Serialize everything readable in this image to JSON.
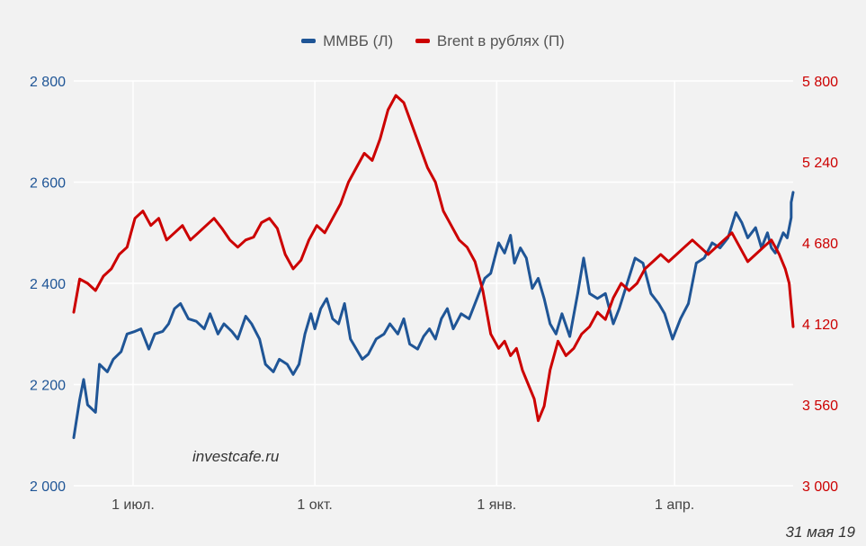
{
  "legend": {
    "left_series_label": "ММВБ (Л)",
    "right_series_label": "Brent в рублях (П)"
  },
  "watermark": "investcafe.ru",
  "date_stamp": "31 мая 19",
  "colors": {
    "background": "#f2f2f2",
    "grid": "#ffffff",
    "left_series": "#1f5596",
    "right_series": "#cc0000",
    "x_tick_text": "#444444"
  },
  "chart_data": {
    "type": "line",
    "x_ticks": [
      "1 июл.",
      "1 окт.",
      "1 янв.",
      "1 апр."
    ],
    "x_range": [
      "2018-06-01",
      "2019-05-31"
    ],
    "y_left": {
      "range": [
        2000,
        2800
      ],
      "ticks": [
        "2 000",
        "2 200",
        "2 400",
        "2 600",
        "2 800"
      ]
    },
    "y_right": {
      "range": [
        3000,
        5800
      ],
      "ticks": [
        "3 000",
        "3 560",
        "4 120",
        "4 680",
        "5 240",
        "5 800"
      ]
    },
    "grid": true,
    "legend_position": "top-center",
    "series": [
      {
        "name": "ММВБ (Л)",
        "axis": "left",
        "points": [
          [
            "2018-06-01",
            2095
          ],
          [
            "2018-06-04",
            2170
          ],
          [
            "2018-06-06",
            2210
          ],
          [
            "2018-06-08",
            2160
          ],
          [
            "2018-06-12",
            2145
          ],
          [
            "2018-06-14",
            2240
          ],
          [
            "2018-06-18",
            2225
          ],
          [
            "2018-06-21",
            2250
          ],
          [
            "2018-06-25",
            2265
          ],
          [
            "2018-06-28",
            2300
          ],
          [
            "2018-07-02",
            2305
          ],
          [
            "2018-07-05",
            2310
          ],
          [
            "2018-07-09",
            2270
          ],
          [
            "2018-07-12",
            2300
          ],
          [
            "2018-07-16",
            2305
          ],
          [
            "2018-07-19",
            2320
          ],
          [
            "2018-07-22",
            2350
          ],
          [
            "2018-07-25",
            2360
          ],
          [
            "2018-07-29",
            2330
          ],
          [
            "2018-08-02",
            2325
          ],
          [
            "2018-08-06",
            2310
          ],
          [
            "2018-08-09",
            2340
          ],
          [
            "2018-08-13",
            2300
          ],
          [
            "2018-08-16",
            2320
          ],
          [
            "2018-08-20",
            2305
          ],
          [
            "2018-08-23",
            2290
          ],
          [
            "2018-08-27",
            2335
          ],
          [
            "2018-08-30",
            2320
          ],
          [
            "2018-09-03",
            2290
          ],
          [
            "2018-09-06",
            2240
          ],
          [
            "2018-09-10",
            2225
          ],
          [
            "2018-09-13",
            2250
          ],
          [
            "2018-09-17",
            2240
          ],
          [
            "2018-09-20",
            2220
          ],
          [
            "2018-09-23",
            2240
          ],
          [
            "2018-09-26",
            2300
          ],
          [
            "2018-09-29",
            2340
          ],
          [
            "2018-10-01",
            2310
          ],
          [
            "2018-10-04",
            2350
          ],
          [
            "2018-10-07",
            2370
          ],
          [
            "2018-10-10",
            2330
          ],
          [
            "2018-10-13",
            2320
          ],
          [
            "2018-10-16",
            2360
          ],
          [
            "2018-10-19",
            2290
          ],
          [
            "2018-10-22",
            2270
          ],
          [
            "2018-10-25",
            2250
          ],
          [
            "2018-10-28",
            2260
          ],
          [
            "2018-11-01",
            2290
          ],
          [
            "2018-11-05",
            2300
          ],
          [
            "2018-11-08",
            2320
          ],
          [
            "2018-11-12",
            2300
          ],
          [
            "2018-11-15",
            2330
          ],
          [
            "2018-11-18",
            2280
          ],
          [
            "2018-11-22",
            2270
          ],
          [
            "2018-11-25",
            2295
          ],
          [
            "2018-11-28",
            2310
          ],
          [
            "2018-12-01",
            2290
          ],
          [
            "2018-12-04",
            2330
          ],
          [
            "2018-12-07",
            2350
          ],
          [
            "2018-12-10",
            2310
          ],
          [
            "2018-12-14",
            2340
          ],
          [
            "2018-12-18",
            2330
          ],
          [
            "2018-12-22",
            2370
          ],
          [
            "2018-12-26",
            2410
          ],
          [
            "2018-12-29",
            2420
          ],
          [
            "2019-01-02",
            2480
          ],
          [
            "2019-01-05",
            2460
          ],
          [
            "2019-01-08",
            2495
          ],
          [
            "2019-01-10",
            2440
          ],
          [
            "2019-01-13",
            2470
          ],
          [
            "2019-01-16",
            2450
          ],
          [
            "2019-01-19",
            2390
          ],
          [
            "2019-01-22",
            2410
          ],
          [
            "2019-01-25",
            2370
          ],
          [
            "2019-01-28",
            2320
          ],
          [
            "2019-01-31",
            2300
          ],
          [
            "2019-02-03",
            2340
          ],
          [
            "2019-02-07",
            2295
          ],
          [
            "2019-02-11",
            2380
          ],
          [
            "2019-02-14",
            2450
          ],
          [
            "2019-02-17",
            2380
          ],
          [
            "2019-02-21",
            2370
          ],
          [
            "2019-02-25",
            2380
          ],
          [
            "2019-03-01",
            2320
          ],
          [
            "2019-03-04",
            2350
          ],
          [
            "2019-03-08",
            2400
          ],
          [
            "2019-03-12",
            2450
          ],
          [
            "2019-03-16",
            2440
          ],
          [
            "2019-03-20",
            2380
          ],
          [
            "2019-03-24",
            2360
          ],
          [
            "2019-03-27",
            2340
          ],
          [
            "2019-03-31",
            2290
          ],
          [
            "2019-04-04",
            2330
          ],
          [
            "2019-04-08",
            2360
          ],
          [
            "2019-04-12",
            2440
          ],
          [
            "2019-04-16",
            2450
          ],
          [
            "2019-04-20",
            2480
          ],
          [
            "2019-04-24",
            2470
          ],
          [
            "2019-04-28",
            2490
          ],
          [
            "2019-05-02",
            2540
          ],
          [
            "2019-05-05",
            2520
          ],
          [
            "2019-05-08",
            2490
          ],
          [
            "2019-05-12",
            2510
          ],
          [
            "2019-05-15",
            2470
          ],
          [
            "2019-05-18",
            2500
          ],
          [
            "2019-05-20",
            2470
          ],
          [
            "2019-05-22",
            2460
          ],
          [
            "2019-05-24",
            2480
          ],
          [
            "2019-05-26",
            2500
          ],
          [
            "2019-05-28",
            2490
          ],
          [
            "2019-05-29",
            2510
          ],
          [
            "2019-05-30",
            2530
          ],
          [
            "2019-05-30",
            2560
          ],
          [
            "2019-05-31",
            2580
          ]
        ]
      },
      {
        "name": "Brent в рублях (П)",
        "axis": "right",
        "points": [
          [
            "2018-06-01",
            4200
          ],
          [
            "2018-06-04",
            4430
          ],
          [
            "2018-06-08",
            4400
          ],
          [
            "2018-06-12",
            4350
          ],
          [
            "2018-06-16",
            4450
          ],
          [
            "2018-06-20",
            4500
          ],
          [
            "2018-06-24",
            4600
          ],
          [
            "2018-06-28",
            4650
          ],
          [
            "2018-07-02",
            4850
          ],
          [
            "2018-07-06",
            4900
          ],
          [
            "2018-07-10",
            4800
          ],
          [
            "2018-07-14",
            4850
          ],
          [
            "2018-07-18",
            4700
          ],
          [
            "2018-07-22",
            4750
          ],
          [
            "2018-07-26",
            4800
          ],
          [
            "2018-07-30",
            4700
          ],
          [
            "2018-08-03",
            4750
          ],
          [
            "2018-08-07",
            4800
          ],
          [
            "2018-08-11",
            4850
          ],
          [
            "2018-08-15",
            4780
          ],
          [
            "2018-08-19",
            4700
          ],
          [
            "2018-08-23",
            4650
          ],
          [
            "2018-08-27",
            4700
          ],
          [
            "2018-08-31",
            4720
          ],
          [
            "2018-09-04",
            4820
          ],
          [
            "2018-09-08",
            4850
          ],
          [
            "2018-09-12",
            4780
          ],
          [
            "2018-09-16",
            4600
          ],
          [
            "2018-09-20",
            4500
          ],
          [
            "2018-09-24",
            4560
          ],
          [
            "2018-09-28",
            4700
          ],
          [
            "2018-10-02",
            4800
          ],
          [
            "2018-10-06",
            4750
          ],
          [
            "2018-10-10",
            4850
          ],
          [
            "2018-10-14",
            4950
          ],
          [
            "2018-10-18",
            5100
          ],
          [
            "2018-10-22",
            5200
          ],
          [
            "2018-10-26",
            5300
          ],
          [
            "2018-10-30",
            5250
          ],
          [
            "2018-11-03",
            5400
          ],
          [
            "2018-11-07",
            5600
          ],
          [
            "2018-11-11",
            5700
          ],
          [
            "2018-11-15",
            5650
          ],
          [
            "2018-11-19",
            5500
          ],
          [
            "2018-11-23",
            5350
          ],
          [
            "2018-11-27",
            5200
          ],
          [
            "2018-12-01",
            5100
          ],
          [
            "2018-12-05",
            4900
          ],
          [
            "2018-12-09",
            4800
          ],
          [
            "2018-12-13",
            4700
          ],
          [
            "2018-12-17",
            4650
          ],
          [
            "2018-12-21",
            4550
          ],
          [
            "2018-12-25",
            4350
          ],
          [
            "2018-12-29",
            4050
          ],
          [
            "2019-01-02",
            3950
          ],
          [
            "2019-01-05",
            4000
          ],
          [
            "2019-01-08",
            3900
          ],
          [
            "2019-01-11",
            3950
          ],
          [
            "2019-01-14",
            3800
          ],
          [
            "2019-01-17",
            3700
          ],
          [
            "2019-01-20",
            3600
          ],
          [
            "2019-01-22",
            3450
          ],
          [
            "2019-01-25",
            3550
          ],
          [
            "2019-01-28",
            3800
          ],
          [
            "2019-02-01",
            4000
          ],
          [
            "2019-02-05",
            3900
          ],
          [
            "2019-02-09",
            3950
          ],
          [
            "2019-02-13",
            4050
          ],
          [
            "2019-02-17",
            4100
          ],
          [
            "2019-02-21",
            4200
          ],
          [
            "2019-02-25",
            4150
          ],
          [
            "2019-03-01",
            4300
          ],
          [
            "2019-03-05",
            4400
          ],
          [
            "2019-03-09",
            4350
          ],
          [
            "2019-03-13",
            4400
          ],
          [
            "2019-03-17",
            4500
          ],
          [
            "2019-03-21",
            4550
          ],
          [
            "2019-03-25",
            4600
          ],
          [
            "2019-03-29",
            4550
          ],
          [
            "2019-04-02",
            4600
          ],
          [
            "2019-04-06",
            4650
          ],
          [
            "2019-04-10",
            4700
          ],
          [
            "2019-04-14",
            4650
          ],
          [
            "2019-04-18",
            4600
          ],
          [
            "2019-04-22",
            4650
          ],
          [
            "2019-04-26",
            4700
          ],
          [
            "2019-04-30",
            4750
          ],
          [
            "2019-05-04",
            4650
          ],
          [
            "2019-05-08",
            4550
          ],
          [
            "2019-05-12",
            4600
          ],
          [
            "2019-05-16",
            4650
          ],
          [
            "2019-05-20",
            4700
          ],
          [
            "2019-05-24",
            4600
          ],
          [
            "2019-05-27",
            4500
          ],
          [
            "2019-05-29",
            4400
          ],
          [
            "2019-05-30",
            4250
          ],
          [
            "2019-05-31",
            4100
          ]
        ]
      }
    ]
  }
}
